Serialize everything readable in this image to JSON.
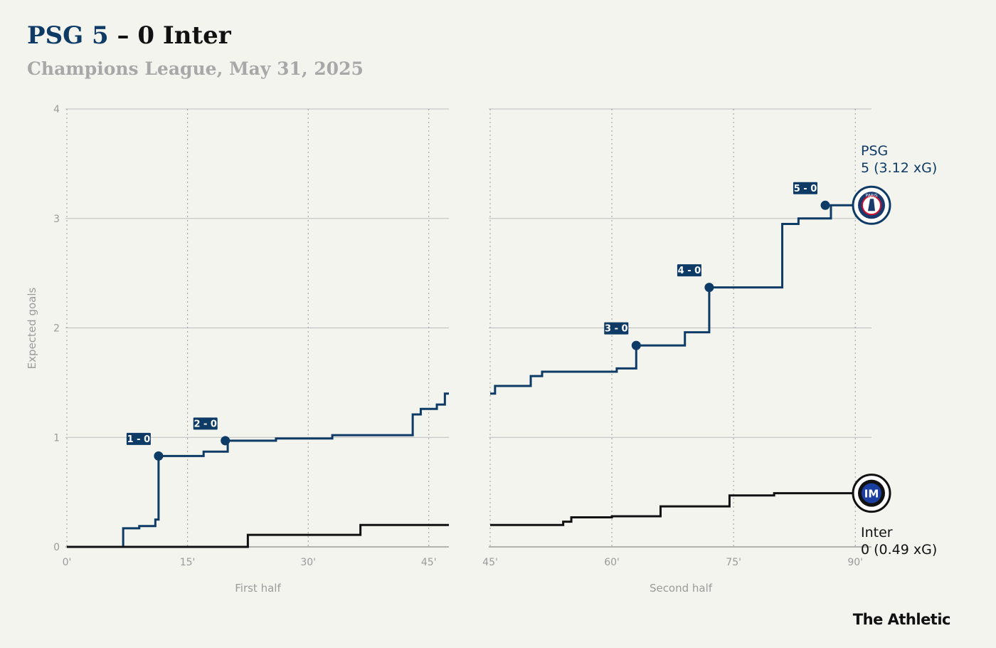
{
  "header": {
    "title_home": "PSG 5",
    "title_sep": " – ",
    "title_away": "0 Inter",
    "subtitle": "Champions League, May 31, 2025"
  },
  "brand": "The Athletic",
  "colors": {
    "psg": "#0d3b66",
    "inter": "#111111",
    "grid": "#bdbdbd",
    "background": "#f4f4ef",
    "inter_badge": "#1a3fa0"
  },
  "chart_data": {
    "type": "line",
    "step": true,
    "title": "PSG 5 – 0 Inter",
    "ylabel": "Expected goals",
    "ylim": [
      0,
      4
    ],
    "yticks": [
      "0",
      "1",
      "2",
      "3",
      "4"
    ],
    "panels": [
      {
        "xlabel": "First half",
        "xlim": [
          0,
          47.5
        ],
        "xticks": [
          0,
          15,
          30,
          45
        ],
        "xtick_labels": [
          "0'",
          "15'",
          "30'",
          "45'"
        ],
        "series": [
          {
            "name": "PSG",
            "x": [
              0,
              7,
              9,
              11,
              11.4,
              17,
              20,
              26,
              33,
              43,
              44,
              46,
              47,
              47.5
            ],
            "y": [
              0,
              0.17,
              0.19,
              0.25,
              0.83,
              0.87,
              0.97,
              0.99,
              1.02,
              1.21,
              1.26,
              1.3,
              1.4,
              1.4
            ]
          },
          {
            "name": "Inter",
            "x": [
              0,
              22.5,
              36.5,
              47.5
            ],
            "y": [
              0,
              0.11,
              0.2,
              0.2
            ]
          }
        ],
        "goals": [
          {
            "label": "1 - 0",
            "x": 11.4,
            "y": 0.83
          },
          {
            "label": "2 - 0",
            "x": 19.7,
            "y": 0.97
          }
        ]
      },
      {
        "xlabel": "Second half",
        "xlim": [
          45,
          92
        ],
        "xticks": [
          45,
          60,
          75,
          90
        ],
        "xtick_labels": [
          "45'",
          "60'",
          "75'",
          "90'"
        ],
        "series": [
          {
            "name": "PSG",
            "x": [
              45,
              45.6,
              50,
              51.4,
              60.6,
              63,
              69,
              72,
              81,
              83,
              87,
              91.5
            ],
            "y": [
              1.4,
              1.47,
              1.56,
              1.6,
              1.63,
              1.84,
              1.96,
              2.37,
              2.95,
              3.0,
              3.12,
              3.12
            ]
          },
          {
            "name": "Inter",
            "x": [
              45,
              54,
              55,
              60,
              66,
              74.5,
              80,
              91.5
            ],
            "y": [
              0.2,
              0.23,
              0.27,
              0.28,
              0.37,
              0.47,
              0.49,
              0.49
            ]
          }
        ],
        "goals": [
          {
            "label": "3 - 0",
            "x": 63,
            "y": 1.84
          },
          {
            "label": "4 - 0",
            "x": 72,
            "y": 2.37
          },
          {
            "label": "5 - 0",
            "x": 86.3,
            "y": 3.12
          }
        ]
      }
    ],
    "end_labels": [
      {
        "team": "PSG",
        "line1": "PSG",
        "line2": "5 (3.12 xG)",
        "badge": "PARIS",
        "y": 3.12
      },
      {
        "team": "Inter",
        "line1": "Inter",
        "line2": "0 (0.49 xG)",
        "badge": "IM",
        "y": 0.49
      }
    ]
  }
}
